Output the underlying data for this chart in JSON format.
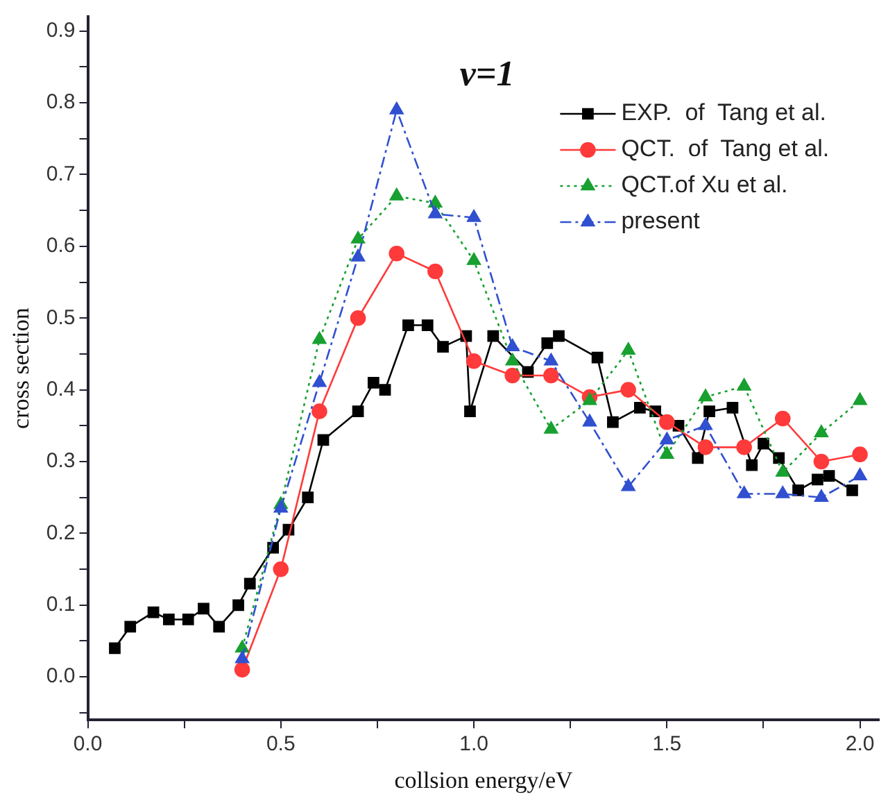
{
  "chart_data": {
    "type": "line",
    "title": "v=1",
    "xlabel": "collsion energy/eV",
    "ylabel": "cross section",
    "xlim": [
      0,
      2.05
    ],
    "ylim": [
      -0.06,
      0.92
    ],
    "xticks": [
      {
        "value": 0,
        "label": "0.0"
      },
      {
        "value": 0.25,
        "label": null
      },
      {
        "value": 0.5,
        "label": "0.5"
      },
      {
        "value": 0.75,
        "label": null
      },
      {
        "value": 1,
        "label": "1.0"
      },
      {
        "value": 1.25,
        "label": null
      },
      {
        "value": 1.5,
        "label": "1.5"
      },
      {
        "value": 1.75,
        "label": null
      },
      {
        "value": 2,
        "label": "2.0"
      }
    ],
    "yticks": [
      {
        "value": -0.05,
        "label": null
      },
      {
        "value": 0,
        "label": "0.0"
      },
      {
        "value": 0.05,
        "label": null
      },
      {
        "value": 0.1,
        "label": "0.1"
      },
      {
        "value": 0.15,
        "label": null
      },
      {
        "value": 0.2,
        "label": "0.2"
      },
      {
        "value": 0.25,
        "label": null
      },
      {
        "value": 0.3,
        "label": "0.3"
      },
      {
        "value": 0.35,
        "label": null
      },
      {
        "value": 0.4,
        "label": "0.4"
      },
      {
        "value": 0.45,
        "label": null
      },
      {
        "value": 0.5,
        "label": "0.5"
      },
      {
        "value": 0.55,
        "label": null
      },
      {
        "value": 0.6,
        "label": "0.6"
      },
      {
        "value": 0.65,
        "label": null
      },
      {
        "value": 0.7,
        "label": "0.7"
      },
      {
        "value": 0.75,
        "label": null
      },
      {
        "value": 0.8,
        "label": "0.8"
      },
      {
        "value": 0.85,
        "label": null
      },
      {
        "value": 0.9,
        "label": "0.9"
      }
    ],
    "grid": false,
    "legend": "top right",
    "series": [
      {
        "name": "EXP.  of  Tang et al.",
        "color": "#000000",
        "marker": "square",
        "line_style": "solid",
        "x": [
          0.07,
          0.11,
          0.17,
          0.21,
          0.26,
          0.3,
          0.34,
          0.39,
          0.42,
          0.48,
          0.52,
          0.57,
          0.61,
          0.7,
          0.74,
          0.77,
          0.83,
          0.88,
          0.92,
          0.98,
          0.99,
          1.05,
          1.14,
          1.19,
          1.22,
          1.32,
          1.36,
          1.43,
          1.47,
          1.53,
          1.58,
          1.61,
          1.67,
          1.72,
          1.75,
          1.79,
          1.84,
          1.89,
          1.92,
          1.98
        ],
        "values": [
          0.04,
          0.07,
          0.09,
          0.08,
          0.08,
          0.095,
          0.07,
          0.1,
          0.13,
          0.18,
          0.205,
          0.25,
          0.33,
          0.37,
          0.41,
          0.4,
          0.49,
          0.49,
          0.46,
          0.475,
          0.37,
          0.475,
          0.425,
          0.465,
          0.475,
          0.445,
          0.355,
          0.375,
          0.37,
          0.35,
          0.305,
          0.37,
          0.375,
          0.295,
          0.325,
          0.305,
          0.26,
          0.275,
          0.28,
          0.26
        ]
      },
      {
        "name": "QCT.  of  Tang et al.",
        "color": "#ff3a3a",
        "marker": "circle",
        "line_style": "solid",
        "x": [
          0.4,
          0.5,
          0.6,
          0.7,
          0.8,
          0.9,
          1.0,
          1.1,
          1.2,
          1.3,
          1.4,
          1.5,
          1.6,
          1.7,
          1.8,
          1.9,
          2.0
        ],
        "values": [
          0.01,
          0.15,
          0.37,
          0.5,
          0.59,
          0.565,
          0.44,
          0.42,
          0.42,
          0.39,
          0.4,
          0.355,
          0.32,
          0.32,
          0.36,
          0.3,
          0.31
        ]
      },
      {
        "name": "QCT.of Xu et al.",
        "color": "#18a030",
        "marker": "triangle",
        "line_style": "dotted",
        "x": [
          0.4,
          0.5,
          0.6,
          0.7,
          0.8,
          0.9,
          1.0,
          1.1,
          1.2,
          1.3,
          1.4,
          1.5,
          1.6,
          1.7,
          1.8,
          1.9,
          2.0
        ],
        "values": [
          0.04,
          0.24,
          0.47,
          0.61,
          0.67,
          0.66,
          0.58,
          0.44,
          0.345,
          0.385,
          0.455,
          0.31,
          0.39,
          0.405,
          0.285,
          0.34,
          0.385
        ]
      },
      {
        "name": "present",
        "color": "#3050d0",
        "marker": "triangle",
        "line_style": "dashed",
        "x": [
          0.4,
          0.5,
          0.6,
          0.7,
          0.8,
          0.9,
          1.0,
          1.1,
          1.2,
          1.3,
          1.4,
          1.5,
          1.6,
          1.7,
          1.8,
          1.9,
          2.0
        ],
        "values": [
          0.025,
          0.235,
          0.41,
          0.585,
          0.79,
          0.645,
          0.64,
          0.46,
          0.44,
          0.355,
          0.265,
          0.33,
          0.35,
          0.255,
          0.255,
          0.25,
          0.28
        ]
      }
    ]
  }
}
